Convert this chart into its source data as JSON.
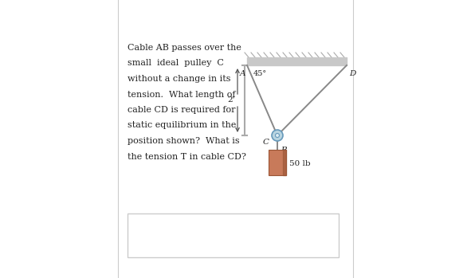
{
  "bg_color": "#ffffff",
  "panel_bg": "#f5f5f5",
  "wall_color": "#c8c8c8",
  "wall_stripe": "#aaaaaa",
  "text_color": "#222222",
  "problem_text_lines": [
    "Cable AB passes over the",
    "small  ideal  pulley  C",
    "without a change in its",
    "tension.  What length of",
    "cable CD is required for",
    "static equilibrium in the",
    "position shown?  What is",
    "the tension T in cable CD?"
  ],
  "angle_label": "45°",
  "label_A": "A",
  "label_B": "B",
  "label_C": "C",
  "label_D": "D",
  "dim_label": "2'",
  "weight_label": "50 lb",
  "pulley_color": "#b8d4e0",
  "pulley_inner": "#deeef5",
  "cable_color": "#888888",
  "weight_color_main": "#c87a5a",
  "weight_color_dark": "#9a5535",
  "answer_box_color": "#ffffff",
  "answer_box_edge": "#cccccc",
  "dim_line_color": "#555555",
  "wall_bracket_color": "#aaaaaa",
  "left_border_color": "#cccccc",
  "right_border_color": "#cccccc"
}
